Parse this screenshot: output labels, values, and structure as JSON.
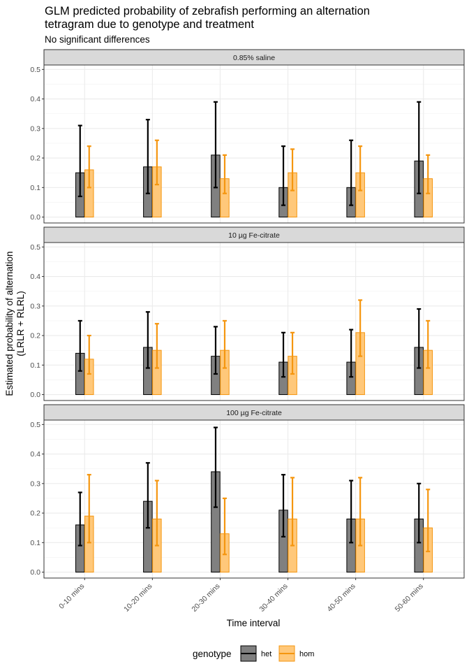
{
  "chart_data": {
    "type": "bar",
    "title": "GLM predicted probability of zebrafish performing an alternation tetragram due to genotype and treatment",
    "title_lines": [
      "GLM predicted probability of zebrafish performing an alternation",
      "tetragram due to genotype and treatment"
    ],
    "subtitle": "No significant differences",
    "xlabel": "Time interval",
    "ylabel_lines": [
      "Estimated probability of alternation",
      "(LRLR + RLRL)"
    ],
    "categories": [
      "0-10 mins",
      "10-20 mins",
      "20-30 mins",
      "30-40 mins",
      "40-50 mins",
      "50-60 mins"
    ],
    "yticks": [
      "0.0",
      "0.1",
      "0.2",
      "0.3",
      "0.4",
      "0.5"
    ],
    "ylim": [
      -0.02,
      0.515
    ],
    "grid": true,
    "legend": {
      "title": "genotype",
      "position": "bottom",
      "entries": [
        {
          "name": "het",
          "fill": "#808080",
          "stroke": "#000000"
        },
        {
          "name": "hom",
          "fill": "#FFC87A",
          "stroke": "#F5960F"
        }
      ]
    },
    "panels": [
      {
        "strip": "0.85% saline",
        "series": [
          {
            "name": "het",
            "values": [
              0.15,
              0.17,
              0.21,
              0.1,
              0.1,
              0.19
            ],
            "lower": [
              0.07,
              0.08,
              0.1,
              0.04,
              0.04,
              0.08
            ],
            "upper": [
              0.31,
              0.33,
              0.39,
              0.24,
              0.26,
              0.39
            ]
          },
          {
            "name": "hom",
            "values": [
              0.16,
              0.17,
              0.13,
              0.15,
              0.15,
              0.13
            ],
            "lower": [
              0.1,
              0.11,
              0.08,
              0.09,
              0.09,
              0.08
            ],
            "upper": [
              0.24,
              0.26,
              0.21,
              0.23,
              0.24,
              0.21
            ]
          }
        ]
      },
      {
        "strip": "10 µg Fe-citrate",
        "series": [
          {
            "name": "het",
            "values": [
              0.14,
              0.16,
              0.13,
              0.11,
              0.11,
              0.16
            ],
            "lower": [
              0.08,
              0.09,
              0.07,
              0.06,
              0.06,
              0.09
            ],
            "upper": [
              0.25,
              0.28,
              0.23,
              0.21,
              0.22,
              0.29
            ]
          },
          {
            "name": "hom",
            "values": [
              0.12,
              0.15,
              0.15,
              0.13,
              0.21,
              0.15
            ],
            "lower": [
              0.07,
              0.09,
              0.09,
              0.07,
              0.13,
              0.09
            ],
            "upper": [
              0.2,
              0.24,
              0.25,
              0.21,
              0.32,
              0.25
            ]
          }
        ]
      },
      {
        "strip": "100 µg Fe-citrate",
        "series": [
          {
            "name": "het",
            "values": [
              0.16,
              0.24,
              0.34,
              0.21,
              0.18,
              0.18
            ],
            "lower": [
              0.09,
              0.15,
              0.22,
              0.12,
              0.1,
              0.1
            ],
            "upper": [
              0.27,
              0.37,
              0.49,
              0.33,
              0.31,
              0.3
            ]
          },
          {
            "name": "hom",
            "values": [
              0.19,
              0.18,
              0.13,
              0.18,
              0.18,
              0.15
            ],
            "lower": [
              0.1,
              0.09,
              0.06,
              0.09,
              0.09,
              0.07
            ],
            "upper": [
              0.33,
              0.31,
              0.25,
              0.32,
              0.32,
              0.28
            ]
          }
        ]
      }
    ]
  }
}
